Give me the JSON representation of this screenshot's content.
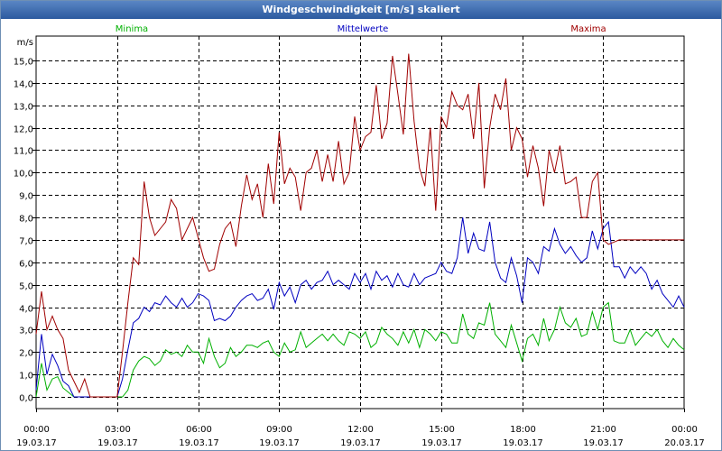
{
  "window": {
    "title": "Windgeschwindigkeit [m/s] skaliert"
  },
  "chart_data": {
    "type": "line",
    "title": "Windgeschwindigkeit [m/s] skaliert",
    "ylabel": "m/s",
    "xlabel": "",
    "ylim": [
      0,
      16
    ],
    "xlim": [
      0,
      24
    ],
    "grid": true,
    "yticks": [
      "0,0",
      "1,0",
      "2,0",
      "3,0",
      "4,0",
      "5,0",
      "6,0",
      "7,0",
      "8,0",
      "9,0",
      "10,0",
      "11,0",
      "12,0",
      "13,0",
      "14,0",
      "15,0"
    ],
    "xticks": [
      {
        "time": "00:00",
        "date": "19.03.17"
      },
      {
        "time": "03:00",
        "date": "19.03.17"
      },
      {
        "time": "06:00",
        "date": "19.03.17"
      },
      {
        "time": "09:00",
        "date": "19.03.17"
      },
      {
        "time": "12:00",
        "date": "19.03.17"
      },
      {
        "time": "15:00",
        "date": "19.03.17"
      },
      {
        "time": "18:00",
        "date": "19.03.17"
      },
      {
        "time": "21:00",
        "date": "19.03.17"
      },
      {
        "time": "00:00",
        "date": "20.03.17"
      }
    ],
    "x": [
      0,
      0.2,
      0.4,
      0.6,
      0.8,
      1,
      1.2,
      1.4,
      1.6,
      1.8,
      2,
      2.2,
      2.4,
      2.6,
      2.8,
      3,
      3.2,
      3.4,
      3.6,
      3.8,
      4,
      4.2,
      4.4,
      4.6,
      4.8,
      5,
      5.2,
      5.4,
      5.6,
      5.8,
      6,
      6.2,
      6.4,
      6.6,
      6.8,
      7,
      7.2,
      7.4,
      7.6,
      7.8,
      8,
      8.2,
      8.4,
      8.6,
      8.8,
      9,
      9.2,
      9.4,
      9.6,
      9.8,
      10,
      10.2,
      10.4,
      10.6,
      10.8,
      11,
      11.2,
      11.4,
      11.6,
      11.8,
      12,
      12.2,
      12.4,
      12.6,
      12.8,
      13,
      13.2,
      13.4,
      13.6,
      13.8,
      14,
      14.2,
      14.4,
      14.6,
      14.8,
      15,
      15.2,
      15.4,
      15.6,
      15.8,
      16,
      16.2,
      16.4,
      16.6,
      16.8,
      17,
      17.2,
      17.4,
      17.6,
      17.8,
      18,
      18.2,
      18.4,
      18.6,
      18.8,
      19,
      19.2,
      19.4,
      19.6,
      19.8,
      20,
      20.2,
      20.4,
      20.6,
      20.8,
      21,
      21.2,
      21.4,
      21.6,
      21.8,
      22,
      22.2,
      22.4,
      22.6,
      22.8,
      23,
      23.2,
      23.4,
      23.6,
      23.8,
      24
    ],
    "series": [
      {
        "name": "Minima",
        "color": "#00b000",
        "values": [
          0,
          1.5,
          0.3,
          0.8,
          0.9,
          0.4,
          0.2,
          0,
          0,
          0,
          0,
          0,
          0,
          0,
          0,
          0,
          0,
          0.3,
          1.2,
          1.6,
          1.8,
          1.7,
          1.4,
          1.6,
          2.1,
          1.9,
          2.0,
          1.8,
          2.3,
          2.0,
          2.0,
          1.5,
          2.6,
          1.8,
          1.3,
          1.5,
          2.2,
          1.8,
          2.0,
          2.3,
          2.3,
          2.2,
          2.4,
          2.5,
          2.0,
          1.8,
          2.4,
          2.0,
          2.1,
          2.9,
          2.2,
          2.4,
          2.6,
          2.8,
          2.5,
          2.8,
          2.5,
          2.3,
          2.9,
          2.8,
          2.6,
          2.9,
          2.2,
          2.4,
          3.1,
          2.8,
          2.6,
          2.3,
          2.9,
          2.4,
          3.0,
          2.2,
          3.0,
          2.8,
          2.5,
          2.9,
          2.8,
          2.4,
          2.4,
          3.7,
          2.8,
          2.6,
          3.3,
          3.2,
          4.2,
          2.8,
          2.5,
          2.2,
          3.2,
          2.4,
          1.6,
          2.6,
          2.8,
          2.3,
          3.5,
          2.5,
          3.0,
          4.0,
          3.3,
          3.1,
          3.5,
          2.7,
          2.8,
          3.8,
          3.0,
          4.0,
          4.2,
          2.5,
          2.4,
          2.4,
          3.0,
          2.3,
          2.6,
          2.9,
          2.7,
          3.0,
          2.5,
          2.2,
          2.6,
          2.3,
          2.1
        ]
      },
      {
        "name": "Mittelwerte",
        "color": "#0000c0",
        "values": [
          0.3,
          2.8,
          1.0,
          1.9,
          1.4,
          0.7,
          0.5,
          0,
          0,
          0,
          0,
          0,
          0,
          0,
          0,
          0,
          0.8,
          2.1,
          3.3,
          3.5,
          4.0,
          3.8,
          4.2,
          4.1,
          4.5,
          4.2,
          4.0,
          4.4,
          4.0,
          4.2,
          4.6,
          4.5,
          4.3,
          3.4,
          3.5,
          3.4,
          3.6,
          4.0,
          4.3,
          4.5,
          4.6,
          4.3,
          4.4,
          4.8,
          3.9,
          5.1,
          4.5,
          4.9,
          4.2,
          5.0,
          5.2,
          4.8,
          5.1,
          5.2,
          5.6,
          5.0,
          5.2,
          5.0,
          4.8,
          5.5,
          5.1,
          5.5,
          4.8,
          5.6,
          5.2,
          5.4,
          4.9,
          5.5,
          5.0,
          4.9,
          5.5,
          5.0,
          5.3,
          5.4,
          5.5,
          6.0,
          5.6,
          5.5,
          6.2,
          8.0,
          6.4,
          7.3,
          6.6,
          6.5,
          7.8,
          6.0,
          5.3,
          5.1,
          6.2,
          5.4,
          4.2,
          6.2,
          6.0,
          5.5,
          6.7,
          6.5,
          7.5,
          6.8,
          6.4,
          6.7,
          6.3,
          6.0,
          6.2,
          7.4,
          6.6,
          7.5,
          7.8,
          5.8,
          5.8,
          5.3,
          5.8,
          5.5,
          5.8,
          5.5,
          4.8,
          5.2,
          4.6,
          4.3,
          4.0,
          4.5,
          4.0
        ]
      },
      {
        "name": "Maxima",
        "color": "#a00000",
        "values": [
          2.8,
          4.7,
          3.0,
          3.6,
          3.0,
          2.6,
          1.2,
          0.7,
          0.2,
          0.8,
          0,
          0,
          0,
          0,
          0,
          0,
          2.0,
          4.2,
          6.2,
          5.9,
          9.6,
          8.0,
          7.2,
          7.5,
          7.8,
          8.8,
          8.4,
          7.0,
          7.5,
          8.0,
          7.1,
          6.2,
          5.6,
          5.7,
          6.8,
          7.5,
          7.8,
          6.7,
          8.5,
          9.9,
          8.8,
          9.5,
          8.0,
          10.4,
          8.6,
          11.8,
          9.5,
          10.2,
          9.8,
          8.3,
          10.0,
          10.2,
          11.0,
          9.6,
          10.8,
          9.6,
          11.4,
          9.5,
          10.0,
          12.5,
          11.0,
          11.6,
          11.8,
          13.9,
          11.5,
          12.2,
          15.2,
          13.5,
          11.7,
          15.3,
          12.3,
          10.2,
          9.4,
          12.0,
          8.3,
          12.5,
          12.0,
          13.6,
          13.0,
          12.8,
          13.5,
          11.5,
          14.0,
          9.3,
          12.0,
          13.5,
          12.8,
          14.2,
          11.0,
          12.0,
          11.5,
          9.8,
          11.2,
          10.2,
          8.5,
          11.0,
          10.0,
          11.2,
          9.5,
          9.6,
          9.8,
          8.0,
          8.0,
          9.6,
          10.0,
          7.0,
          6.8,
          6.9,
          7.0,
          7.0,
          7.0,
          7.0,
          7.0,
          7.0,
          7.0,
          7.0,
          7.0,
          7.0,
          7.0,
          7.0,
          7.0
        ]
      }
    ]
  }
}
